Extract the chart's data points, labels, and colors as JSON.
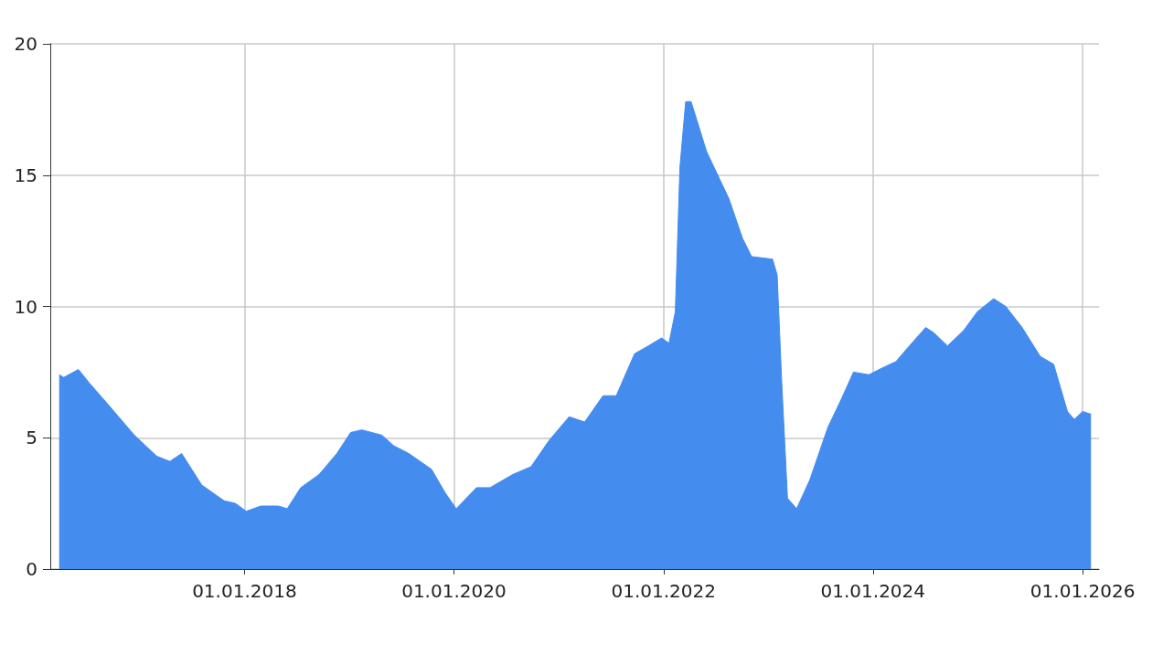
{
  "chart_data": {
    "type": "area",
    "color": "#448cee",
    "x": [
      "2016-03-26",
      "2016-04-11",
      "2016-06-01",
      "2016-07-08",
      "2016-09-10",
      "2016-12-13",
      "2017-03-01",
      "2017-04-16",
      "2017-05-27",
      "2017-08-05",
      "2017-10-22",
      "2017-12-01",
      "2018-01-07",
      "2018-02-27",
      "2018-04-29",
      "2018-05-30",
      "2018-07-16",
      "2018-09-18",
      "2018-11-19",
      "2019-01-06",
      "2019-02-14",
      "2019-04-25",
      "2019-06-05",
      "2019-07-28",
      "2019-10-15",
      "2019-12-02",
      "2020-01-09",
      "2020-03-20",
      "2020-05-06",
      "2020-07-24",
      "2020-09-26",
      "2020-11-28",
      "2021-02-06",
      "2021-04-01",
      "2021-06-04",
      "2021-07-20",
      "2021-09-22",
      "2021-11-09",
      "2021-12-25",
      "2022-01-20",
      "2022-02-11",
      "2022-02-27",
      "2022-03-19",
      "2022-04-07",
      "2022-05-31",
      "2022-08-17",
      "2022-10-03",
      "2022-11-04",
      "2023-01-16",
      "2023-02-01",
      "2023-02-17",
      "2023-03-09",
      "2023-04-10",
      "2023-05-26",
      "2023-07-28",
      "2023-09-14",
      "2023-10-25",
      "2023-12-18",
      "2024-02-10",
      "2024-03-21",
      "2024-05-07",
      "2024-07-03",
      "2024-07-31",
      "2024-09-17",
      "2024-11-13",
      "2024-12-30",
      "2025-02-25",
      "2025-04-08",
      "2025-06-04",
      "2025-08-06",
      "2025-09-22",
      "2025-11-09",
      "2025-12-03",
      "2026-01-01",
      "2026-01-30"
    ],
    "values": [
      7.4,
      7.3,
      7.6,
      7.1,
      6.3,
      5.1,
      4.3,
      4.1,
      4.4,
      3.2,
      2.6,
      2.5,
      2.2,
      2.4,
      2.4,
      2.3,
      3.1,
      3.6,
      4.4,
      5.2,
      5.3,
      5.1,
      4.7,
      4.4,
      3.8,
      2.9,
      2.3,
      3.1,
      3.1,
      3.6,
      3.9,
      4.9,
      5.8,
      5.6,
      6.6,
      6.6,
      8.2,
      8.5,
      8.8,
      8.6,
      9.8,
      15.3,
      17.8,
      17.8,
      15.9,
      14.1,
      12.6,
      11.9,
      11.8,
      11.2,
      7.1,
      2.7,
      2.3,
      3.4,
      5.4,
      6.5,
      7.5,
      7.4,
      7.7,
      7.9,
      8.5,
      9.2,
      9.0,
      8.5,
      9.1,
      9.8,
      10.3,
      10.0,
      9.2,
      8.1,
      7.8,
      6.0,
      5.7,
      6.0,
      5.9
    ],
    "xlim": [
      "2016-02-24",
      "2026-02-27"
    ],
    "xticks": [
      {
        "value": "2018-01-01",
        "label": "01.01.2018"
      },
      {
        "value": "2020-01-01",
        "label": "01.01.2020"
      },
      {
        "value": "2022-01-01",
        "label": "01.01.2022"
      },
      {
        "value": "2024-01-01",
        "label": "01.01.2024"
      },
      {
        "value": "2026-01-01",
        "label": "01.01.2026"
      }
    ],
    "ylim": [
      0,
      20
    ],
    "yticks": [
      0,
      5,
      10,
      15,
      20
    ],
    "grid": true
  }
}
